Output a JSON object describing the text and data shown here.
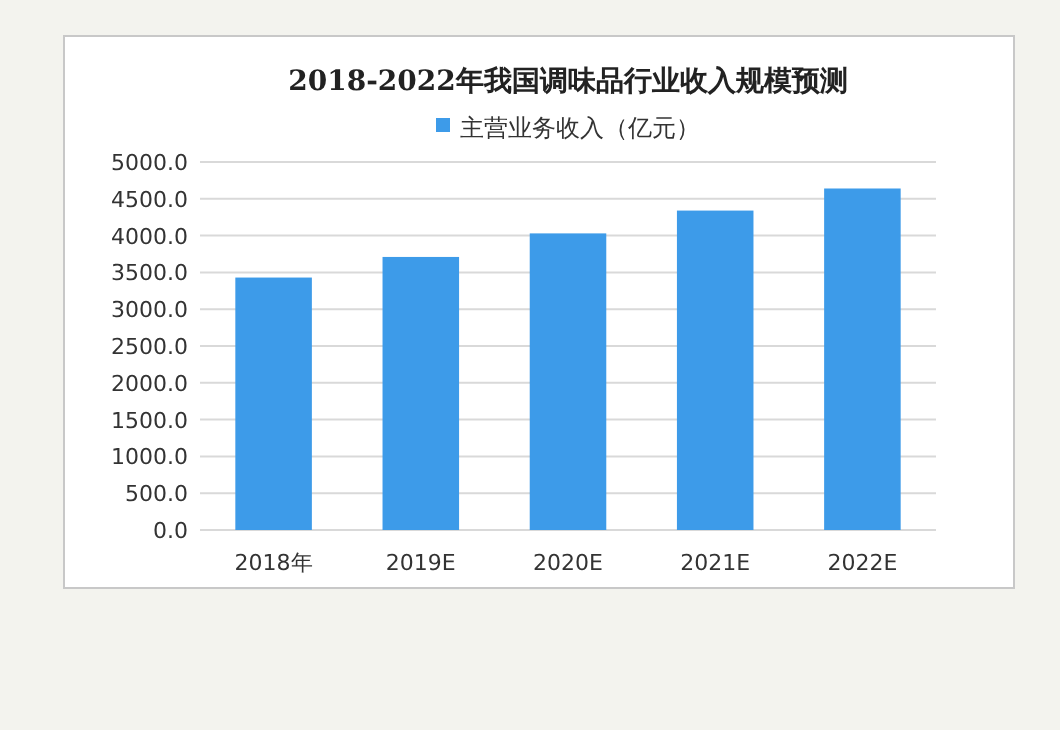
{
  "chart_data": {
    "type": "bar",
    "title": "2018-2022年我国调味品行业收入规模预测",
    "categories": [
      "2018年",
      "2019E",
      "2020E",
      "2021E",
      "2022E"
    ],
    "series": [
      {
        "name": "主营业务收入（亿元）",
        "color": "#3d9be9",
        "values": [
          3430,
          3710,
          4030,
          4340,
          4640
        ]
      }
    ],
    "ylim": [
      0,
      5000
    ],
    "yticks": [
      {
        "value": 0,
        "label": "0.0"
      },
      {
        "value": 500,
        "label": "500.0"
      },
      {
        "value": 1000,
        "label": "1000.0"
      },
      {
        "value": 1500,
        "label": "1500.0"
      },
      {
        "value": 2000,
        "label": "2000.0"
      },
      {
        "value": 2500,
        "label": "2500.0"
      },
      {
        "value": 3000,
        "label": "3000.0"
      },
      {
        "value": 3500,
        "label": "3500.0"
      },
      {
        "value": 4000,
        "label": "4000.0"
      },
      {
        "value": 4500,
        "label": "4500.0"
      },
      {
        "value": 5000,
        "label": "5000.0"
      }
    ],
    "grid": "y",
    "legend": "top"
  }
}
